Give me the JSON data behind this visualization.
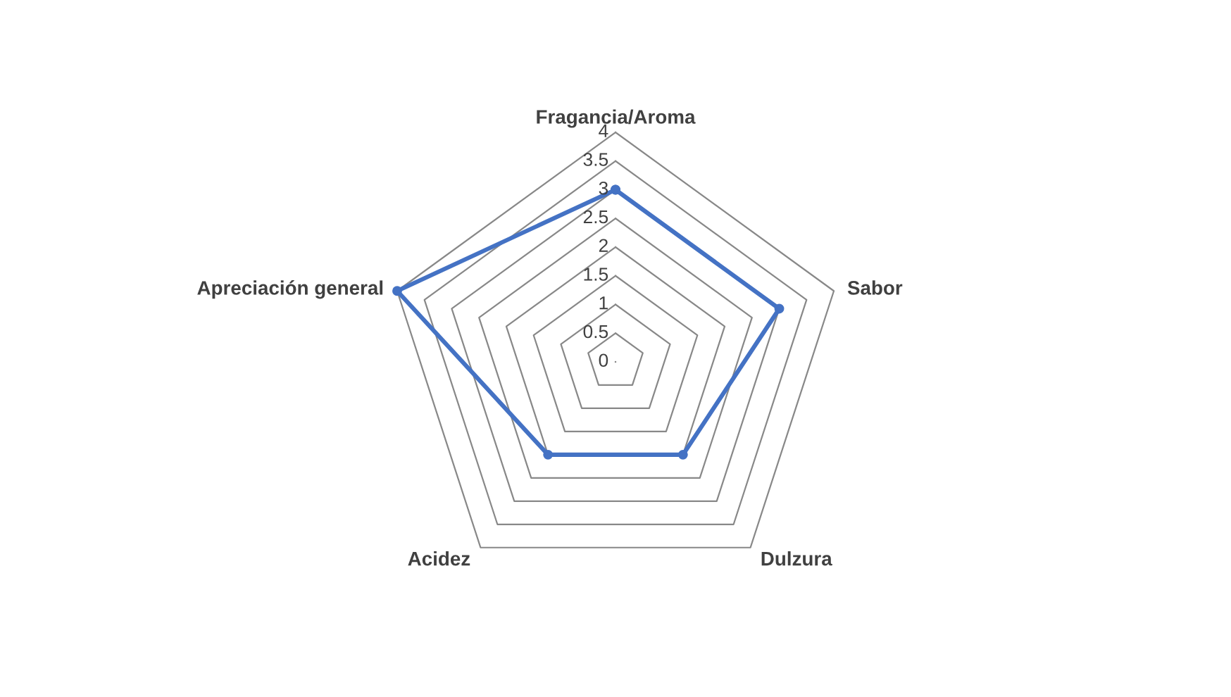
{
  "chart_data": {
    "type": "radar",
    "categories": [
      "Fragancia/Aroma",
      "Sabor",
      "Dulzura",
      "Acidez",
      "Apreciación general"
    ],
    "series": [
      {
        "color": "#4472c4",
        "values": [
          3,
          3,
          2,
          2,
          4
        ]
      }
    ],
    "ylim": [
      0,
      4
    ],
    "yticks": [
      0,
      0.5,
      1,
      1.5,
      2,
      2.5,
      3,
      3.5,
      4
    ],
    "grid": true,
    "marker": "circle",
    "line_style": "solid",
    "legend": false
  }
}
